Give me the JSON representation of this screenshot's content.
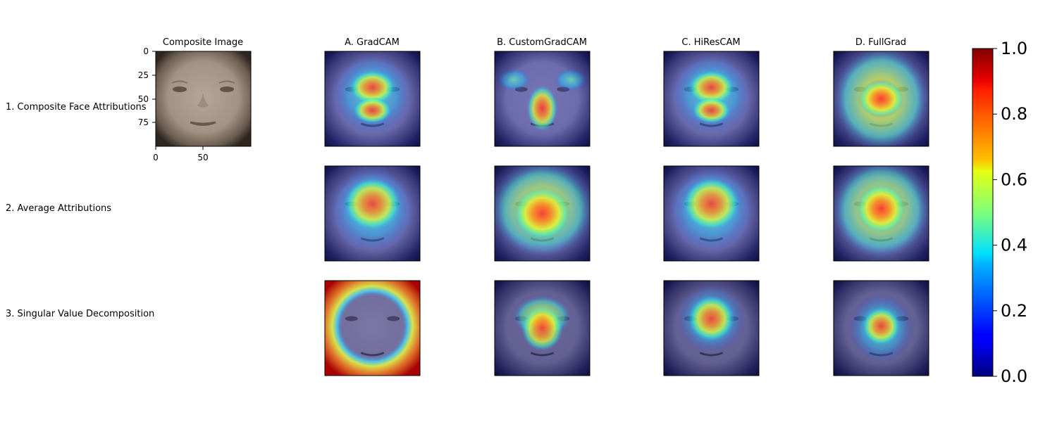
{
  "chart_data": {
    "type": "heatmap",
    "composite": {
      "title": "Composite Image",
      "x_ticks": [
        0,
        50
      ],
      "y_ticks": [
        0,
        25,
        50,
        75
      ],
      "xlim": [
        0,
        100
      ],
      "ylim": [
        100,
        0
      ]
    },
    "row_labels": [
      "1. Composite Face Attributions",
      "2. Average Attributions",
      "3. Singular Value Decomposition"
    ],
    "column_titles": [
      "A. GradCAM",
      "B. CustomGradCAM",
      "C. HiResCAM",
      "D. FullGrad"
    ],
    "colorbar": {
      "colormap": "jet",
      "range": [
        0.0,
        1.0
      ],
      "ticks": [
        "0.0",
        "0.2",
        "0.4",
        "0.6",
        "0.8",
        "1.0"
      ]
    },
    "colors": {
      "face_skin": "#a99a8c",
      "face_border": "#3a3128",
      "overlay_low": "#00008f"
    }
  }
}
